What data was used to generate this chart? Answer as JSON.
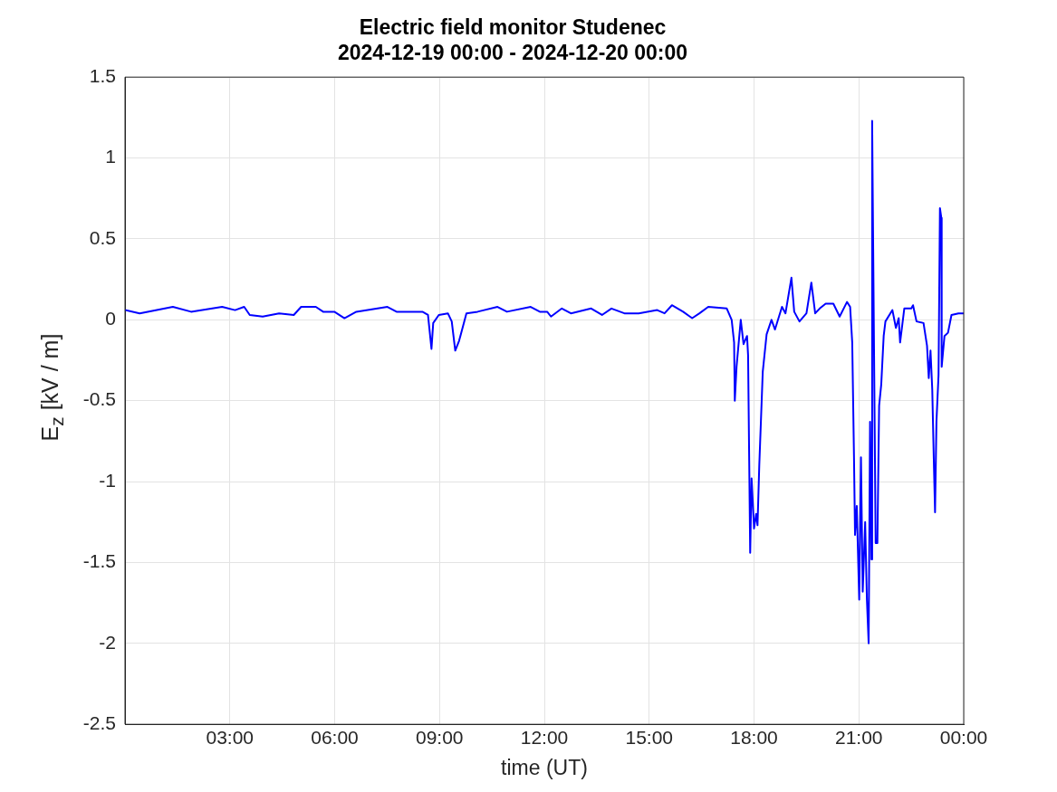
{
  "chart_data": {
    "type": "line",
    "title": "Electric field monitor Studenec\n2024-12-19 00:00 - 2024-12-20 00:00",
    "xlabel": "time (UT)",
    "ylabel": "E$_{z}$ [kV / m]",
    "xlim": [
      0,
      24
    ],
    "xticks": [
      {
        "value": 3,
        "label": "03:00"
      },
      {
        "value": 6,
        "label": "06:00"
      },
      {
        "value": 9,
        "label": "09:00"
      },
      {
        "value": 12,
        "label": "12:00"
      },
      {
        "value": 15,
        "label": "15:00"
      },
      {
        "value": 18,
        "label": "18:00"
      },
      {
        "value": 21,
        "label": "21:00"
      },
      {
        "value": 24,
        "label": "00:00"
      }
    ],
    "ylim": [
      -2.5,
      1.5
    ],
    "yticks": [
      -2.5,
      -2,
      -1.5,
      -1,
      -0.5,
      0,
      0.5,
      1,
      1.5
    ],
    "grid": true,
    "x": [
      0,
      0.42,
      1.37,
      1.89,
      2.78,
      3.15,
      3.41,
      3.57,
      3.94,
      4.41,
      4.83,
      5.04,
      5.46,
      5.67,
      5.99,
      6.28,
      6.62,
      7.51,
      7.77,
      8.51,
      8.67,
      8.77,
      8.82,
      8.98,
      9.24,
      9.35,
      9.45,
      9.56,
      9.77,
      10.09,
      10.66,
      10.93,
      11.61,
      11.87,
      12.08,
      12.19,
      12.5,
      12.76,
      13.34,
      13.65,
      13.92,
      14.29,
      14.7,
      15.23,
      15.44,
      15.65,
      15.97,
      16.23,
      16.44,
      16.69,
      17.22,
      17.36,
      17.43,
      17.45,
      17.5,
      17.62,
      17.7,
      17.8,
      17.83,
      17.89,
      17.93,
      18.0,
      18.06,
      18.1,
      18.15,
      18.25,
      18.36,
      18.5,
      18.6,
      18.8,
      18.9,
      19.07,
      19.15,
      19.3,
      19.5,
      19.64,
      19.75,
      19.88,
      20.05,
      20.27,
      20.45,
      20.66,
      20.75,
      20.81,
      20.86,
      20.89,
      20.94,
      21.01,
      21.06,
      21.11,
      21.18,
      21.23,
      21.28,
      21.32,
      21.36,
      21.38,
      21.41,
      21.44,
      21.48,
      21.53,
      21.58,
      21.64,
      21.71,
      21.76,
      21.96,
      22.06,
      22.14,
      22.18,
      22.3,
      22.5,
      22.55,
      22.65,
      22.85,
      22.95,
      23.0,
      23.05,
      23.1,
      23.15,
      23.18,
      23.22,
      23.28,
      23.32,
      23.36,
      23.37,
      23.45,
      23.55,
      23.65,
      23.85,
      24.0
    ],
    "series": [
      {
        "color": "#0000ff",
        "values": [
          0.06,
          0.04,
          0.08,
          0.05,
          0.08,
          0.06,
          0.08,
          0.03,
          0.02,
          0.04,
          0.03,
          0.08,
          0.08,
          0.05,
          0.05,
          0.01,
          0.05,
          0.08,
          0.05,
          0.05,
          0.03,
          -0.18,
          -0.02,
          0.03,
          0.04,
          -0.01,
          -0.19,
          -0.13,
          0.04,
          0.05,
          0.08,
          0.05,
          0.08,
          0.05,
          0.05,
          0.02,
          0.07,
          0.04,
          0.07,
          0.03,
          0.07,
          0.04,
          0.04,
          0.06,
          0.04,
          0.09,
          0.05,
          0.01,
          0.04,
          0.08,
          0.07,
          0.0,
          -0.14,
          -0.5,
          -0.29,
          0.0,
          -0.15,
          -0.1,
          -0.22,
          -1.44,
          -0.98,
          -1.29,
          -1.2,
          -1.27,
          -0.9,
          -0.32,
          -0.09,
          0.0,
          -0.06,
          0.08,
          0.04,
          0.26,
          0.05,
          -0.01,
          0.04,
          0.23,
          0.04,
          0.07,
          0.1,
          0.1,
          0.02,
          0.11,
          0.08,
          -0.14,
          -0.84,
          -1.33,
          -1.15,
          -1.73,
          -0.85,
          -1.68,
          -1.25,
          -1.73,
          -2.0,
          -0.63,
          -1.48,
          1.23,
          0.44,
          -0.35,
          -1.38,
          -1.38,
          -0.53,
          -0.4,
          -0.1,
          -0.01,
          0.06,
          -0.05,
          0.01,
          -0.14,
          0.07,
          0.07,
          0.09,
          -0.01,
          -0.02,
          -0.16,
          -0.36,
          -0.19,
          -0.43,
          -0.92,
          -1.19,
          -0.63,
          -0.34,
          0.69,
          0.63,
          -0.29,
          -0.1,
          -0.08,
          0.03,
          0.04,
          0.04
        ]
      }
    ]
  }
}
